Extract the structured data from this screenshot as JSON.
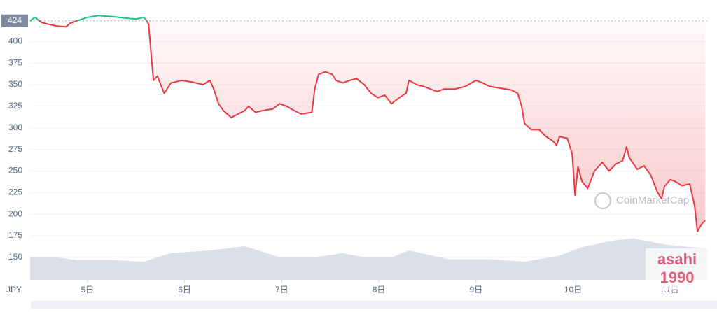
{
  "chart_data": {
    "type": "line",
    "x": [
      4.41,
      4.46,
      4.53,
      4.6,
      4.68,
      4.78,
      4.82,
      4.89,
      5.0,
      5.11,
      5.25,
      5.4,
      5.5,
      5.58,
      5.61,
      5.63,
      5.66,
      5.68,
      5.72,
      5.79,
      5.86,
      5.97,
      6.08,
      6.19,
      6.26,
      6.3,
      6.35,
      6.4,
      6.48,
      6.55,
      6.62,
      6.66,
      6.73,
      6.8,
      6.91,
      6.98,
      7.05,
      7.13,
      7.2,
      7.31,
      7.34,
      7.38,
      7.45,
      7.52,
      7.56,
      7.63,
      7.7,
      7.77,
      7.85,
      7.92,
      7.99,
      8.06,
      8.13,
      8.21,
      8.28,
      8.31,
      8.39,
      8.46,
      8.53,
      8.6,
      8.67,
      8.78,
      8.89,
      9.0,
      9.07,
      9.14,
      9.25,
      9.36,
      9.43,
      9.47,
      9.5,
      9.57,
      9.65,
      9.72,
      9.79,
      9.83,
      9.86,
      9.94,
      9.99,
      10.02,
      10.05,
      10.09,
      10.15,
      10.22,
      10.3,
      10.37,
      10.44,
      10.51,
      10.55,
      10.58,
      10.66,
      10.73,
      10.8,
      10.87,
      10.91,
      10.94,
      11.0,
      11.05,
      11.12,
      11.2,
      11.25,
      11.28,
      11.32,
      11.36
    ],
    "values": [
      424,
      428,
      422,
      420,
      418,
      417,
      421,
      424,
      428,
      430,
      429,
      427,
      426,
      428,
      424,
      420,
      380,
      355,
      360,
      340,
      352,
      355,
      353,
      350,
      355,
      345,
      328,
      320,
      312,
      316,
      320,
      325,
      318,
      320,
      322,
      328,
      325,
      320,
      316,
      318,
      345,
      362,
      365,
      362,
      355,
      352,
      355,
      357,
      350,
      340,
      335,
      338,
      328,
      335,
      340,
      355,
      350,
      348,
      345,
      342,
      345,
      345,
      348,
      355,
      352,
      348,
      346,
      344,
      340,
      325,
      305,
      298,
      298,
      290,
      285,
      280,
      290,
      288,
      270,
      222,
      255,
      238,
      230,
      250,
      260,
      250,
      258,
      262,
      278,
      265,
      252,
      256,
      245,
      225,
      218,
      232,
      240,
      238,
      233,
      235,
      210,
      180,
      188,
      193
    ],
    "volume": {
      "x": [
        4.41,
        4.68,
        4.89,
        5.25,
        5.58,
        5.86,
        6.26,
        6.62,
        6.98,
        7.34,
        7.63,
        7.85,
        8.13,
        8.31,
        8.71,
        9.14,
        9.5,
        9.86,
        10.09,
        10.44,
        10.62,
        10.94,
        11.38
      ],
      "values": [
        150,
        150,
        147,
        147,
        145,
        155,
        158,
        163,
        150,
        150,
        155,
        150,
        150,
        158,
        148,
        148,
        145,
        152,
        162,
        170,
        172,
        165,
        160
      ]
    },
    "baseline": 424,
    "xlim": [
      4.41,
      11.38
    ],
    "ylim": [
      124,
      440
    ],
    "yticks": [
      150,
      175,
      200,
      225,
      250,
      275,
      300,
      325,
      350,
      375,
      400
    ],
    "xticks": [
      {
        "value": 5,
        "label": "5日"
      },
      {
        "value": 6,
        "label": "6日"
      },
      {
        "value": 7,
        "label": "7日"
      },
      {
        "value": 8,
        "label": "8日"
      },
      {
        "value": 9,
        "label": "9日"
      },
      {
        "value": 10,
        "label": "10日"
      },
      {
        "value": 11,
        "label": "11日"
      }
    ],
    "x_label": "JPY",
    "up_color": "#16c784",
    "down_color": "#ea3943",
    "volume_color": "#d8dbe6",
    "grid": true,
    "watermark": "CoinMarketCap",
    "overlay": [
      "asahi",
      "1990"
    ]
  }
}
